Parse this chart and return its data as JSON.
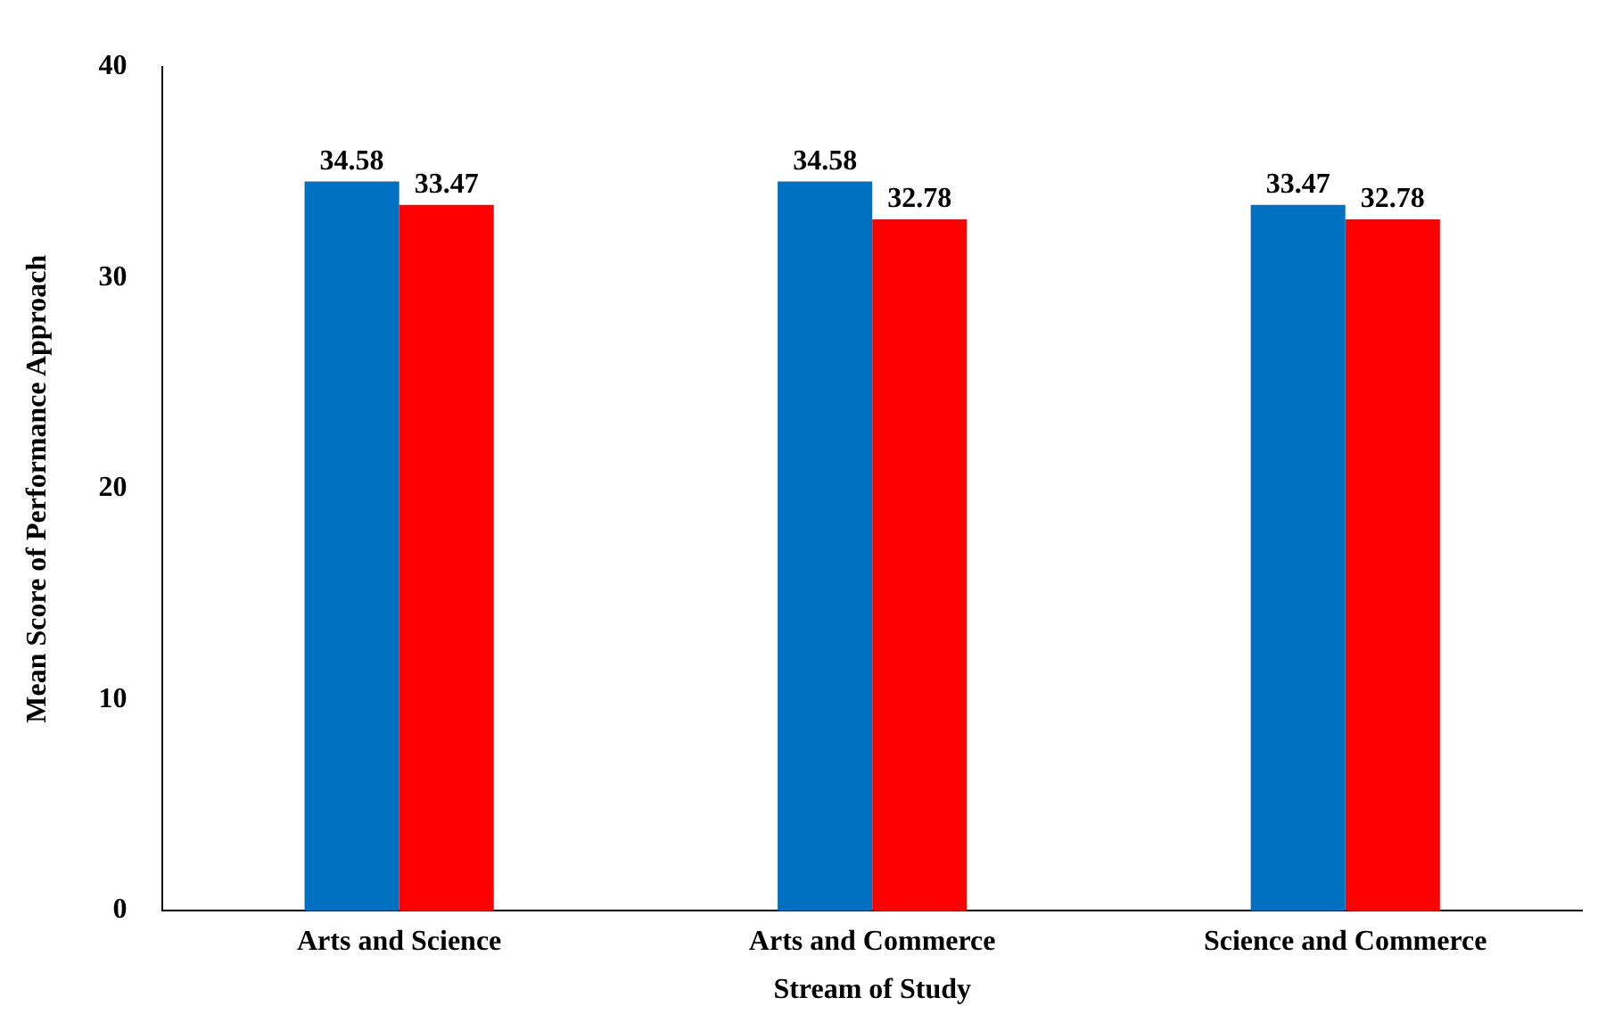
{
  "chart_data": {
    "type": "bar",
    "xlabel": "Stream of Study",
    "ylabel": "Mean Score of Performance Approach",
    "categories": [
      "Arts and Science",
      "Arts and Commerce",
      "Science and Commerce"
    ],
    "series": [
      {
        "color": "#0070c0",
        "values": [
          34.58,
          34.58,
          33.47
        ]
      },
      {
        "color": "#ff0000",
        "values": [
          33.47,
          32.78,
          32.78
        ]
      }
    ],
    "ylim": [
      0,
      40
    ],
    "yticks": [
      0,
      10,
      20,
      30,
      40
    ],
    "grid": false,
    "legend": false,
    "data_labels": true
  }
}
